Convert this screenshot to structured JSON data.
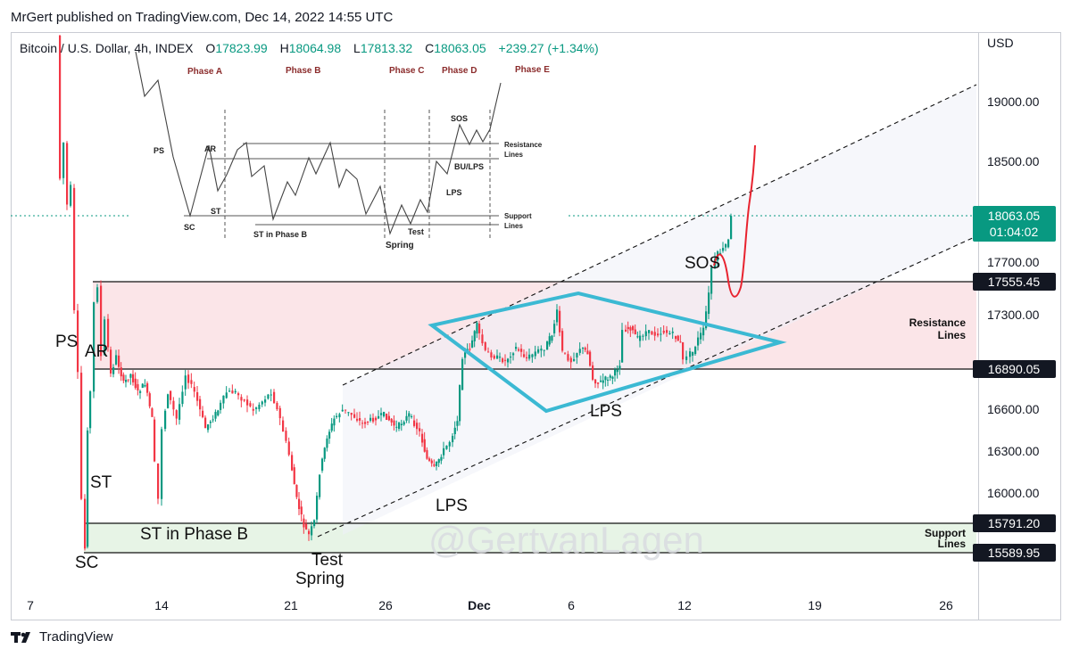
{
  "header": {
    "published": "MrGert published on TradingView.com, Dec 14, 2022 14:55 UTC"
  },
  "legend": {
    "symbol": "Bitcoin / U.S. Dollar, 4h, INDEX",
    "o_label": "O",
    "o_value": "17823.99",
    "h_label": "H",
    "h_value": "18064.98",
    "l_label": "L",
    "l_value": "17813.32",
    "c_label": "C",
    "c_value": "18063.05",
    "change": "+239.27 (+1.34%)"
  },
  "footer": {
    "brand": "TradingView",
    "icon": "tradingview-logo-icon"
  },
  "watermark": "@GertvanLagen",
  "colors": {
    "up": "#089981",
    "down": "#f23645",
    "channel": "#111111",
    "diamond": "#3bb9d3",
    "projection": "#e8232f",
    "resistance_zone": "#fbe5e8",
    "support_zone": "#e7f4e6"
  },
  "chart_data": {
    "type": "candlestick",
    "currency": "USD",
    "x_ticks": [
      "7",
      "14",
      "21",
      "26",
      "Dec",
      "6",
      "12",
      "19",
      "26"
    ],
    "y_ticks": [
      "19000.00",
      "18500.00",
      "17700.00",
      "17300.00",
      "16600.00",
      "16300.00",
      "16000.00"
    ],
    "price_labels": [
      {
        "value": "18063.05",
        "countdown": "01:04:02",
        "kind": "last"
      },
      {
        "value": "17555.45",
        "kind": "level"
      },
      {
        "value": "16890.05",
        "kind": "level"
      },
      {
        "value": "15791.20",
        "kind": "level"
      },
      {
        "value": "15589.95",
        "kind": "level"
      }
    ],
    "zones": [
      {
        "name": "Resistance Lines",
        "from": 16890.05,
        "to": 17555.45
      },
      {
        "name": "Support Lines",
        "from": 15589.95,
        "to": 15791.2
      }
    ],
    "annotations": [
      "PS",
      "AR",
      "ST",
      "SC",
      "ST in Phase B",
      "Test",
      "Spring",
      "LPS",
      "LPS",
      "SOS"
    ],
    "zone_labels": [
      [
        "Resistance",
        "Lines"
      ],
      [
        "Support",
        "Lines"
      ]
    ],
    "inset": {
      "phases": [
        "Phase A",
        "Phase B",
        "Phase C",
        "Phase D",
        "Phase E"
      ],
      "labels": [
        "PS",
        "AR",
        "ST",
        "SC",
        "ST in Phase B",
        "Spring",
        "Test",
        "LPS",
        "BU/LPS",
        "SOS"
      ],
      "line_labels": [
        [
          "Resistance",
          "Lines"
        ],
        [
          "Support",
          "Lines"
        ]
      ]
    }
  }
}
